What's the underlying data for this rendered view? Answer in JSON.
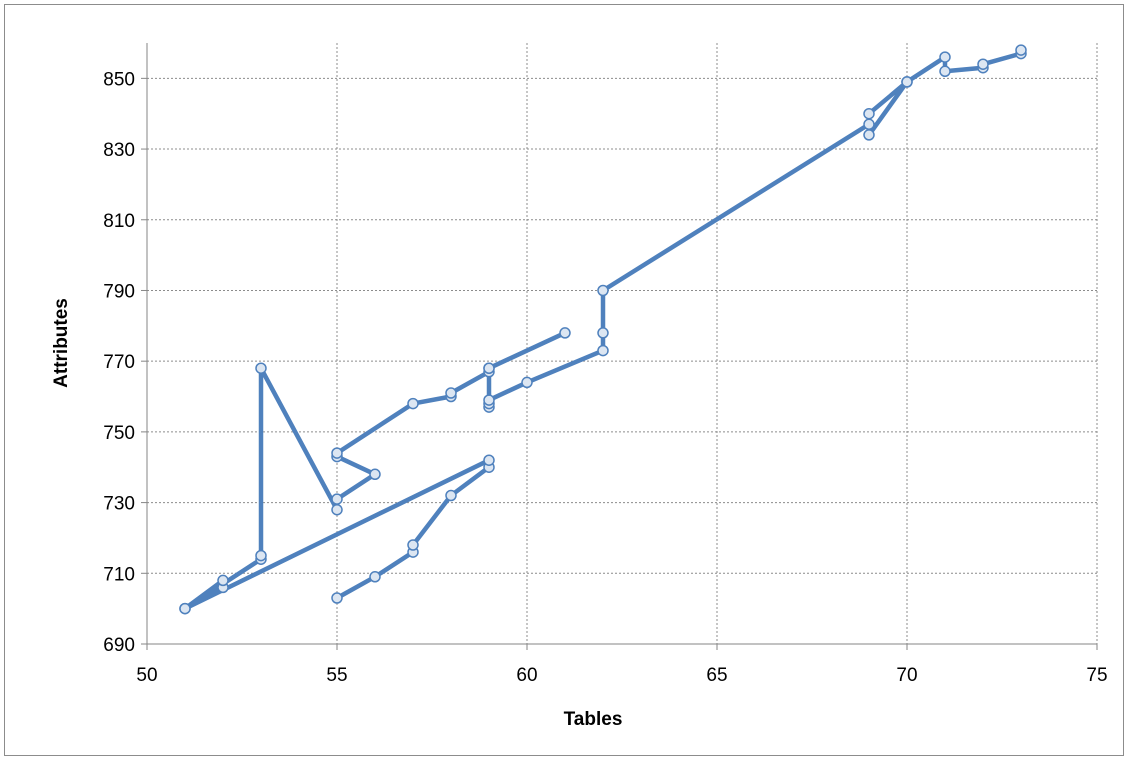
{
  "chart_data": {
    "type": "line",
    "title": "",
    "xlabel": "Tables",
    "ylabel": "Attributes",
    "xlim": [
      50,
      75
    ],
    "ylim": [
      690,
      860
    ],
    "x_ticks": [
      50,
      55,
      60,
      65,
      70,
      75
    ],
    "y_ticks": [
      690,
      710,
      730,
      750,
      770,
      790,
      810,
      830,
      850
    ],
    "grid": true,
    "legend": "none",
    "series": [
      {
        "color": "#4f81bd",
        "marker_fill": "#dce6f2",
        "points": [
          [
            55,
            703
          ],
          [
            56,
            709
          ],
          [
            57,
            716
          ],
          [
            57,
            718
          ],
          [
            58,
            732
          ],
          [
            59,
            740
          ],
          [
            59,
            742
          ],
          [
            51,
            700
          ],
          [
            52,
            706
          ],
          [
            52,
            708
          ],
          [
            51,
            700
          ],
          [
            53,
            714
          ],
          [
            53,
            715
          ],
          [
            53,
            768
          ],
          [
            55,
            728
          ],
          [
            55,
            731
          ],
          [
            56,
            738
          ],
          [
            55,
            743
          ],
          [
            55,
            744
          ],
          [
            57,
            758
          ],
          [
            58,
            760
          ],
          [
            58,
            761
          ],
          [
            59,
            767
          ],
          [
            59,
            768
          ],
          [
            61,
            778
          ],
          [
            59,
            768
          ],
          [
            59,
            757
          ],
          [
            59,
            758
          ],
          [
            59,
            759
          ],
          [
            60,
            764
          ],
          [
            62,
            773
          ],
          [
            62,
            778
          ],
          [
            62,
            790
          ],
          [
            69,
            837
          ],
          [
            69,
            840
          ],
          [
            70,
            849
          ],
          [
            69,
            834
          ],
          [
            70,
            849
          ],
          [
            71,
            856
          ],
          [
            71,
            852
          ],
          [
            72,
            853
          ],
          [
            72,
            854
          ],
          [
            73,
            857
          ],
          [
            73,
            858
          ]
        ]
      }
    ]
  }
}
